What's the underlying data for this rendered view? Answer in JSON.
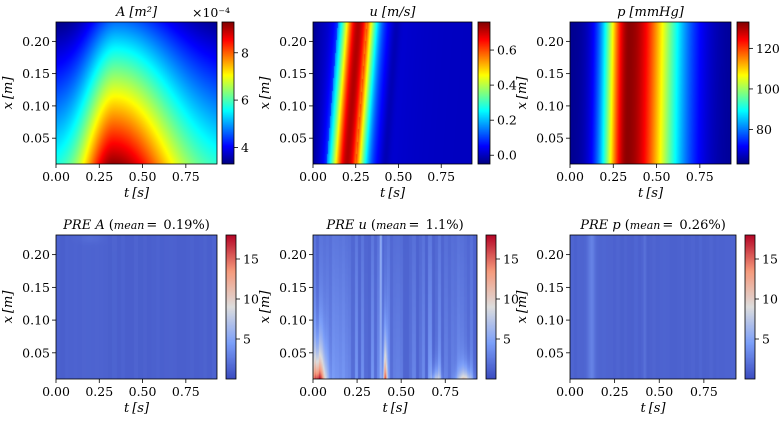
{
  "figure": {
    "description": "2x3 grid of heatmaps"
  },
  "chart_data": [
    {
      "type": "heatmap",
      "title": "A [m²]",
      "title_italic": "A",
      "title_unit": "[m²]",
      "xlabel": "t [s]",
      "xlabel_sym": "t",
      "xlabel_unit": "[s]",
      "ylabel": "x [m]",
      "ylabel_sym": "x",
      "ylabel_unit": "[m]",
      "xlim": [
        0,
        0.93
      ],
      "ylim": [
        0.01,
        0.23
      ],
      "xticks": [
        0,
        0.25,
        0.5,
        0.75
      ],
      "xtick_labels": [
        "0.00",
        "0.25",
        "0.50",
        "0.75"
      ],
      "yticks": [
        0.05,
        0.1,
        0.15,
        0.2
      ],
      "ytick_labels": [
        "0.05",
        "0.10",
        "0.15",
        "0.20"
      ],
      "colormap": "jet",
      "clim": [
        3.3,
        9.3
      ],
      "colorbar_ticks": [
        4,
        6,
        8
      ],
      "colorbar_labels": [
        "4",
        "6",
        "8"
      ],
      "colorbar_multiplier": "×10⁻⁴",
      "field": "area"
    },
    {
      "type": "heatmap",
      "title": "u [m/s]",
      "title_italic": "u",
      "title_unit": "[m/s]",
      "xlabel": "t [s]",
      "xlabel_sym": "t",
      "xlabel_unit": "[s]",
      "ylabel": "x [m]",
      "ylabel_sym": "x",
      "ylabel_unit": "[m]",
      "xlim": [
        0,
        0.93
      ],
      "ylim": [
        0.01,
        0.23
      ],
      "xticks": [
        0,
        0.25,
        0.5,
        0.75
      ],
      "xtick_labels": [
        "0.00",
        "0.25",
        "0.50",
        "0.75"
      ],
      "yticks": [
        0.05,
        0.1,
        0.15,
        0.2
      ],
      "ytick_labels": [
        "0.05",
        "0.10",
        "0.15",
        "0.20"
      ],
      "colormap": "jet",
      "clim": [
        -0.05,
        0.76
      ],
      "colorbar_ticks": [
        0.0,
        0.2,
        0.4,
        0.6
      ],
      "colorbar_labels": [
        "0.0",
        "0.2",
        "0.4",
        "0.6"
      ],
      "field": "velocity"
    },
    {
      "type": "heatmap",
      "title": "p [mmHg]",
      "title_italic": "p",
      "title_unit": "[mmHg]",
      "xlabel": "t [s]",
      "xlabel_sym": "t",
      "xlabel_unit": "[s]",
      "ylabel": "x [m]",
      "ylabel_sym": "x",
      "ylabel_unit": "[m]",
      "xlim": [
        0,
        0.93
      ],
      "ylim": [
        0.01,
        0.23
      ],
      "xticks": [
        0,
        0.25,
        0.5,
        0.75
      ],
      "xtick_labels": [
        "0.00",
        "0.25",
        "0.50",
        "0.75"
      ],
      "yticks": [
        0.05,
        0.1,
        0.15,
        0.2
      ],
      "ytick_labels": [
        "0.05",
        "0.10",
        "0.15",
        "0.20"
      ],
      "colormap": "jet",
      "clim": [
        63,
        133
      ],
      "colorbar_ticks": [
        80,
        100,
        120
      ],
      "colorbar_labels": [
        "80",
        "100",
        "120"
      ],
      "field": "pressure"
    },
    {
      "type": "heatmap",
      "title": "PRE A (mean = 0.19%)",
      "title_italic": "PRE A",
      "title_mean_label": "mean",
      "title_mean_value": "0.19%",
      "xlabel": "t [s]",
      "xlabel_sym": "t",
      "xlabel_unit": "[s]",
      "ylabel": "x [m]",
      "ylabel_sym": "x",
      "ylabel_unit": "[m]",
      "xlim": [
        0,
        0.93
      ],
      "ylim": [
        0.01,
        0.23
      ],
      "xticks": [
        0,
        0.25,
        0.5,
        0.75
      ],
      "xtick_labels": [
        "0.00",
        "0.25",
        "0.50",
        "0.75"
      ],
      "yticks": [
        0.05,
        0.1,
        0.15,
        0.2
      ],
      "ytick_labels": [
        "0.05",
        "0.10",
        "0.15",
        "0.20"
      ],
      "colormap": "coolwarm",
      "clim": [
        0,
        18
      ],
      "colorbar_ticks": [
        5,
        10,
        15
      ],
      "colorbar_labels": [
        "5",
        "10",
        "15"
      ],
      "field": "error_area"
    },
    {
      "type": "heatmap",
      "title": "PRE u (mean = 1.1%)",
      "title_italic": "PRE u",
      "title_mean_label": "mean",
      "title_mean_value": "1.1%",
      "xlabel": "t [s]",
      "xlabel_sym": "t",
      "xlabel_unit": "[s]",
      "ylabel": "x [m]",
      "ylabel_sym": "x",
      "ylabel_unit": "[m]",
      "xlim": [
        0,
        0.93
      ],
      "ylim": [
        0.01,
        0.23
      ],
      "xticks": [
        0,
        0.25,
        0.5,
        0.75
      ],
      "xtick_labels": [
        "0.00",
        "0.25",
        "0.50",
        "0.75"
      ],
      "yticks": [
        0.05,
        0.1,
        0.15,
        0.2
      ],
      "ytick_labels": [
        "0.05",
        "0.10",
        "0.15",
        "0.20"
      ],
      "colormap": "coolwarm",
      "clim": [
        0,
        18
      ],
      "colorbar_ticks": [
        5,
        10,
        15
      ],
      "colorbar_labels": [
        "5",
        "10",
        "15"
      ],
      "field": "error_velocity"
    },
    {
      "type": "heatmap",
      "title": "PRE p (mean = 0.26%)",
      "title_italic": "PRE p",
      "title_mean_label": "mean",
      "title_mean_value": "0.26%",
      "xlabel": "t [s]",
      "xlabel_sym": "t",
      "xlabel_unit": "[s]",
      "ylabel": "x [m]",
      "ylabel_sym": "x",
      "ylabel_unit": "[m]",
      "xlim": [
        0,
        0.93
      ],
      "ylim": [
        0.01,
        0.23
      ],
      "xticks": [
        0,
        0.25,
        0.5,
        0.75
      ],
      "xtick_labels": [
        "0.00",
        "0.25",
        "0.50",
        "0.75"
      ],
      "yticks": [
        0.05,
        0.1,
        0.15,
        0.2
      ],
      "ytick_labels": [
        "0.05",
        "0.10",
        "0.15",
        "0.20"
      ],
      "colormap": "coolwarm",
      "clim": [
        0,
        18
      ],
      "colorbar_ticks": [
        5,
        10,
        15
      ],
      "colorbar_labels": [
        "5",
        "10",
        "15"
      ],
      "field": "error_pressure"
    }
  ]
}
